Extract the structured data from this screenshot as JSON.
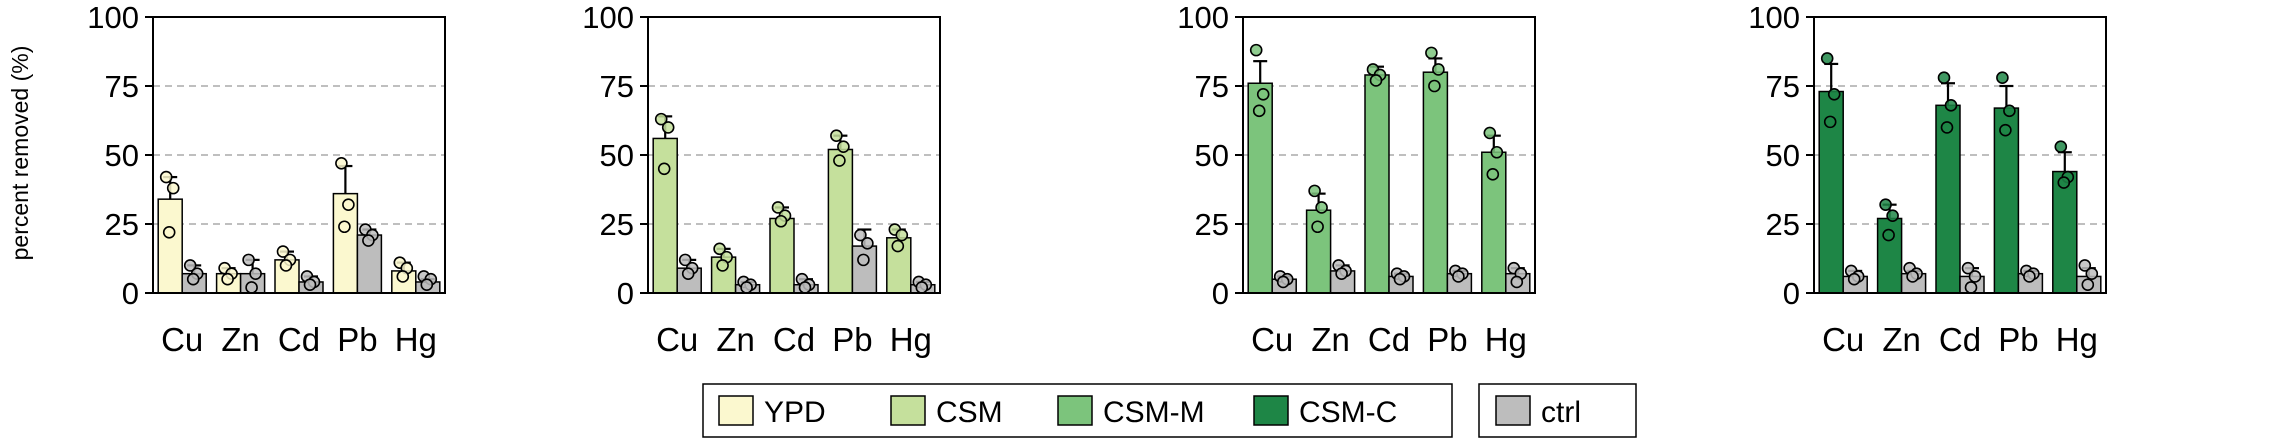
{
  "chart_data": {
    "type": "bar",
    "ylabel": "percent removed (%)",
    "ylim": [
      0,
      100
    ],
    "yticks": [
      0,
      25,
      50,
      75,
      100
    ],
    "grid": "horizontal dashed at 25, 50, 75",
    "categories": [
      "Cu",
      "Zn",
      "Cd",
      "Pb",
      "Hg"
    ],
    "legend": {
      "placement": "bottom-center",
      "entries": [
        {
          "label": "YPD",
          "color": "#fbf8cf"
        },
        {
          "label": "CSM",
          "color": "#c5e09c"
        },
        {
          "label": "CSM-M",
          "color": "#7cc47c"
        },
        {
          "label": "CSM-C",
          "color": "#1e8646"
        },
        {
          "label": "ctrl",
          "color": "#bdbdbd"
        }
      ]
    },
    "panels": [
      {
        "treatment": "YPD",
        "color": "#fbf8cf",
        "means": [
          34,
          7,
          12,
          36,
          8
        ],
        "errors": [
          8,
          2,
          3,
          10,
          3
        ],
        "points": [
          [
            42,
            38,
            22
          ],
          [
            9,
            7,
            5
          ],
          [
            15,
            12,
            10
          ],
          [
            47,
            32,
            24
          ],
          [
            11,
            9,
            6
          ]
        ],
        "ctrl_means": [
          7,
          7,
          4,
          21,
          4
        ],
        "ctrl_errors": [
          3,
          5,
          2,
          2,
          1
        ],
        "ctrl_points": [
          [
            10,
            7,
            5
          ],
          [
            12,
            7,
            2
          ],
          [
            6,
            4,
            3
          ],
          [
            23,
            21,
            19
          ],
          [
            6,
            5,
            3
          ]
        ]
      },
      {
        "treatment": "CSM",
        "color": "#c5e09c",
        "means": [
          56,
          13,
          27,
          52,
          20
        ],
        "errors": [
          8,
          3,
          4,
          5,
          3
        ],
        "points": [
          [
            63,
            60,
            45
          ],
          [
            16,
            13,
            10
          ],
          [
            31,
            28,
            26
          ],
          [
            57,
            53,
            48
          ],
          [
            23,
            21,
            17
          ]
        ],
        "ctrl_means": [
          9,
          3,
          3,
          17,
          3
        ],
        "ctrl_errors": [
          3,
          1,
          2,
          6,
          1
        ],
        "ctrl_points": [
          [
            12,
            9,
            7
          ],
          [
            4,
            3,
            2
          ],
          [
            5,
            3,
            2
          ],
          [
            21,
            18,
            12
          ],
          [
            4,
            3,
            2
          ]
        ]
      },
      {
        "treatment": "CSM-M",
        "color": "#7cc47c",
        "means": [
          76,
          30,
          79,
          80,
          51
        ],
        "errors": [
          8,
          6,
          3,
          5,
          6
        ],
        "points": [
          [
            88,
            72,
            66
          ],
          [
            37,
            31,
            24
          ],
          [
            81,
            79,
            77
          ],
          [
            87,
            81,
            75
          ],
          [
            58,
            51,
            43
          ]
        ],
        "ctrl_means": [
          5,
          8,
          6,
          7,
          7
        ],
        "ctrl_errors": [
          1,
          2,
          1,
          1,
          2
        ],
        "ctrl_points": [
          [
            6,
            5,
            4
          ],
          [
            10,
            8,
            7
          ],
          [
            7,
            6,
            5
          ],
          [
            8,
            7,
            6
          ],
          [
            9,
            7,
            4
          ]
        ]
      },
      {
        "treatment": "CSM-C",
        "color": "#1e8646",
        "means": [
          73,
          27,
          68,
          67,
          44
        ],
        "errors": [
          10,
          5,
          8,
          8,
          7
        ],
        "points": [
          [
            85,
            72,
            62
          ],
          [
            32,
            28,
            21
          ],
          [
            78,
            68,
            60
          ],
          [
            78,
            66,
            59
          ],
          [
            53,
            42,
            40
          ]
        ],
        "ctrl_means": [
          6,
          7,
          6,
          7,
          6
        ],
        "ctrl_errors": [
          2,
          1,
          3,
          1,
          3
        ],
        "ctrl_points": [
          [
            8,
            6,
            5
          ],
          [
            9,
            7,
            6
          ],
          [
            9,
            6,
            2
          ],
          [
            8,
            7,
            6
          ],
          [
            10,
            7,
            3
          ]
        ]
      }
    ]
  }
}
